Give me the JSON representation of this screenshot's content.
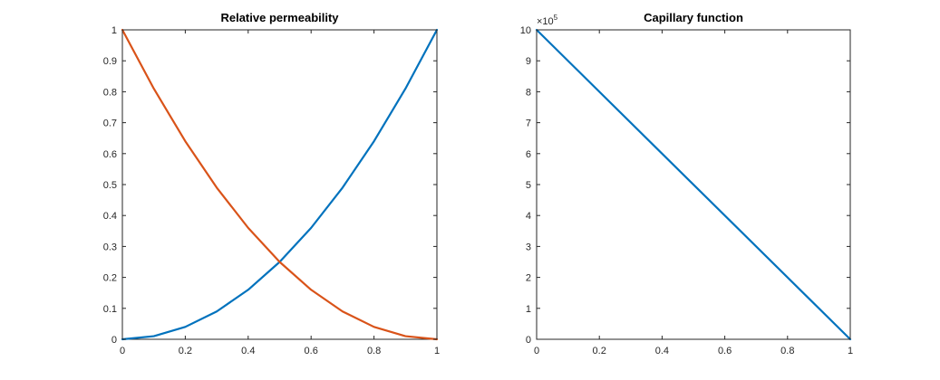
{
  "chart_data": [
    {
      "type": "line",
      "title": "Relative permeability",
      "xlabel": "",
      "ylabel": "",
      "xlim": [
        0,
        1
      ],
      "ylim": [
        0,
        1
      ],
      "xticks": [
        "0",
        "0.2",
        "0.4",
        "0.6",
        "0.8",
        "1"
      ],
      "xtick_values": [
        0,
        0.2,
        0.4,
        0.6,
        0.8,
        1
      ],
      "yticks": [
        "0",
        "0.1",
        "0.2",
        "0.3",
        "0.4",
        "0.5",
        "0.6",
        "0.7",
        "0.8",
        "0.9",
        "1"
      ],
      "ytick_values": [
        0,
        0.1,
        0.2,
        0.3,
        0.4,
        0.5,
        0.6,
        0.7,
        0.8,
        0.9,
        1
      ],
      "grid": false,
      "legend": "none",
      "x": [
        0,
        0.1,
        0.2,
        0.3,
        0.4,
        0.5,
        0.6,
        0.7,
        0.8,
        0.9,
        1
      ],
      "series": [
        {
          "color": "#0072BD",
          "values": [
            0,
            0.01,
            0.04,
            0.09,
            0.16,
            0.25,
            0.36,
            0.49,
            0.64,
            0.81,
            1
          ]
        },
        {
          "color": "#D95319",
          "values": [
            1,
            0.81,
            0.64,
            0.49,
            0.36,
            0.25,
            0.16,
            0.09,
            0.04,
            0.01,
            0
          ]
        }
      ]
    },
    {
      "type": "line",
      "title": "Capillary function",
      "xlabel": "",
      "ylabel": "",
      "xlim": [
        0,
        1
      ],
      "ylim": [
        0,
        10
      ],
      "y_multiplier_base": "×10",
      "y_multiplier_exponent": "5",
      "xticks": [
        "0",
        "0.2",
        "0.4",
        "0.6",
        "0.8",
        "1"
      ],
      "xtick_values": [
        0,
        0.2,
        0.4,
        0.6,
        0.8,
        1
      ],
      "yticks": [
        "0",
        "1",
        "2",
        "3",
        "4",
        "5",
        "6",
        "7",
        "8",
        "9",
        "10"
      ],
      "ytick_values": [
        0,
        1,
        2,
        3,
        4,
        5,
        6,
        7,
        8,
        9,
        10
      ],
      "grid": false,
      "legend": "none",
      "x": [
        0,
        1
      ],
      "series": [
        {
          "color": "#0072BD",
          "values": [
            10,
            0
          ]
        }
      ]
    }
  ]
}
